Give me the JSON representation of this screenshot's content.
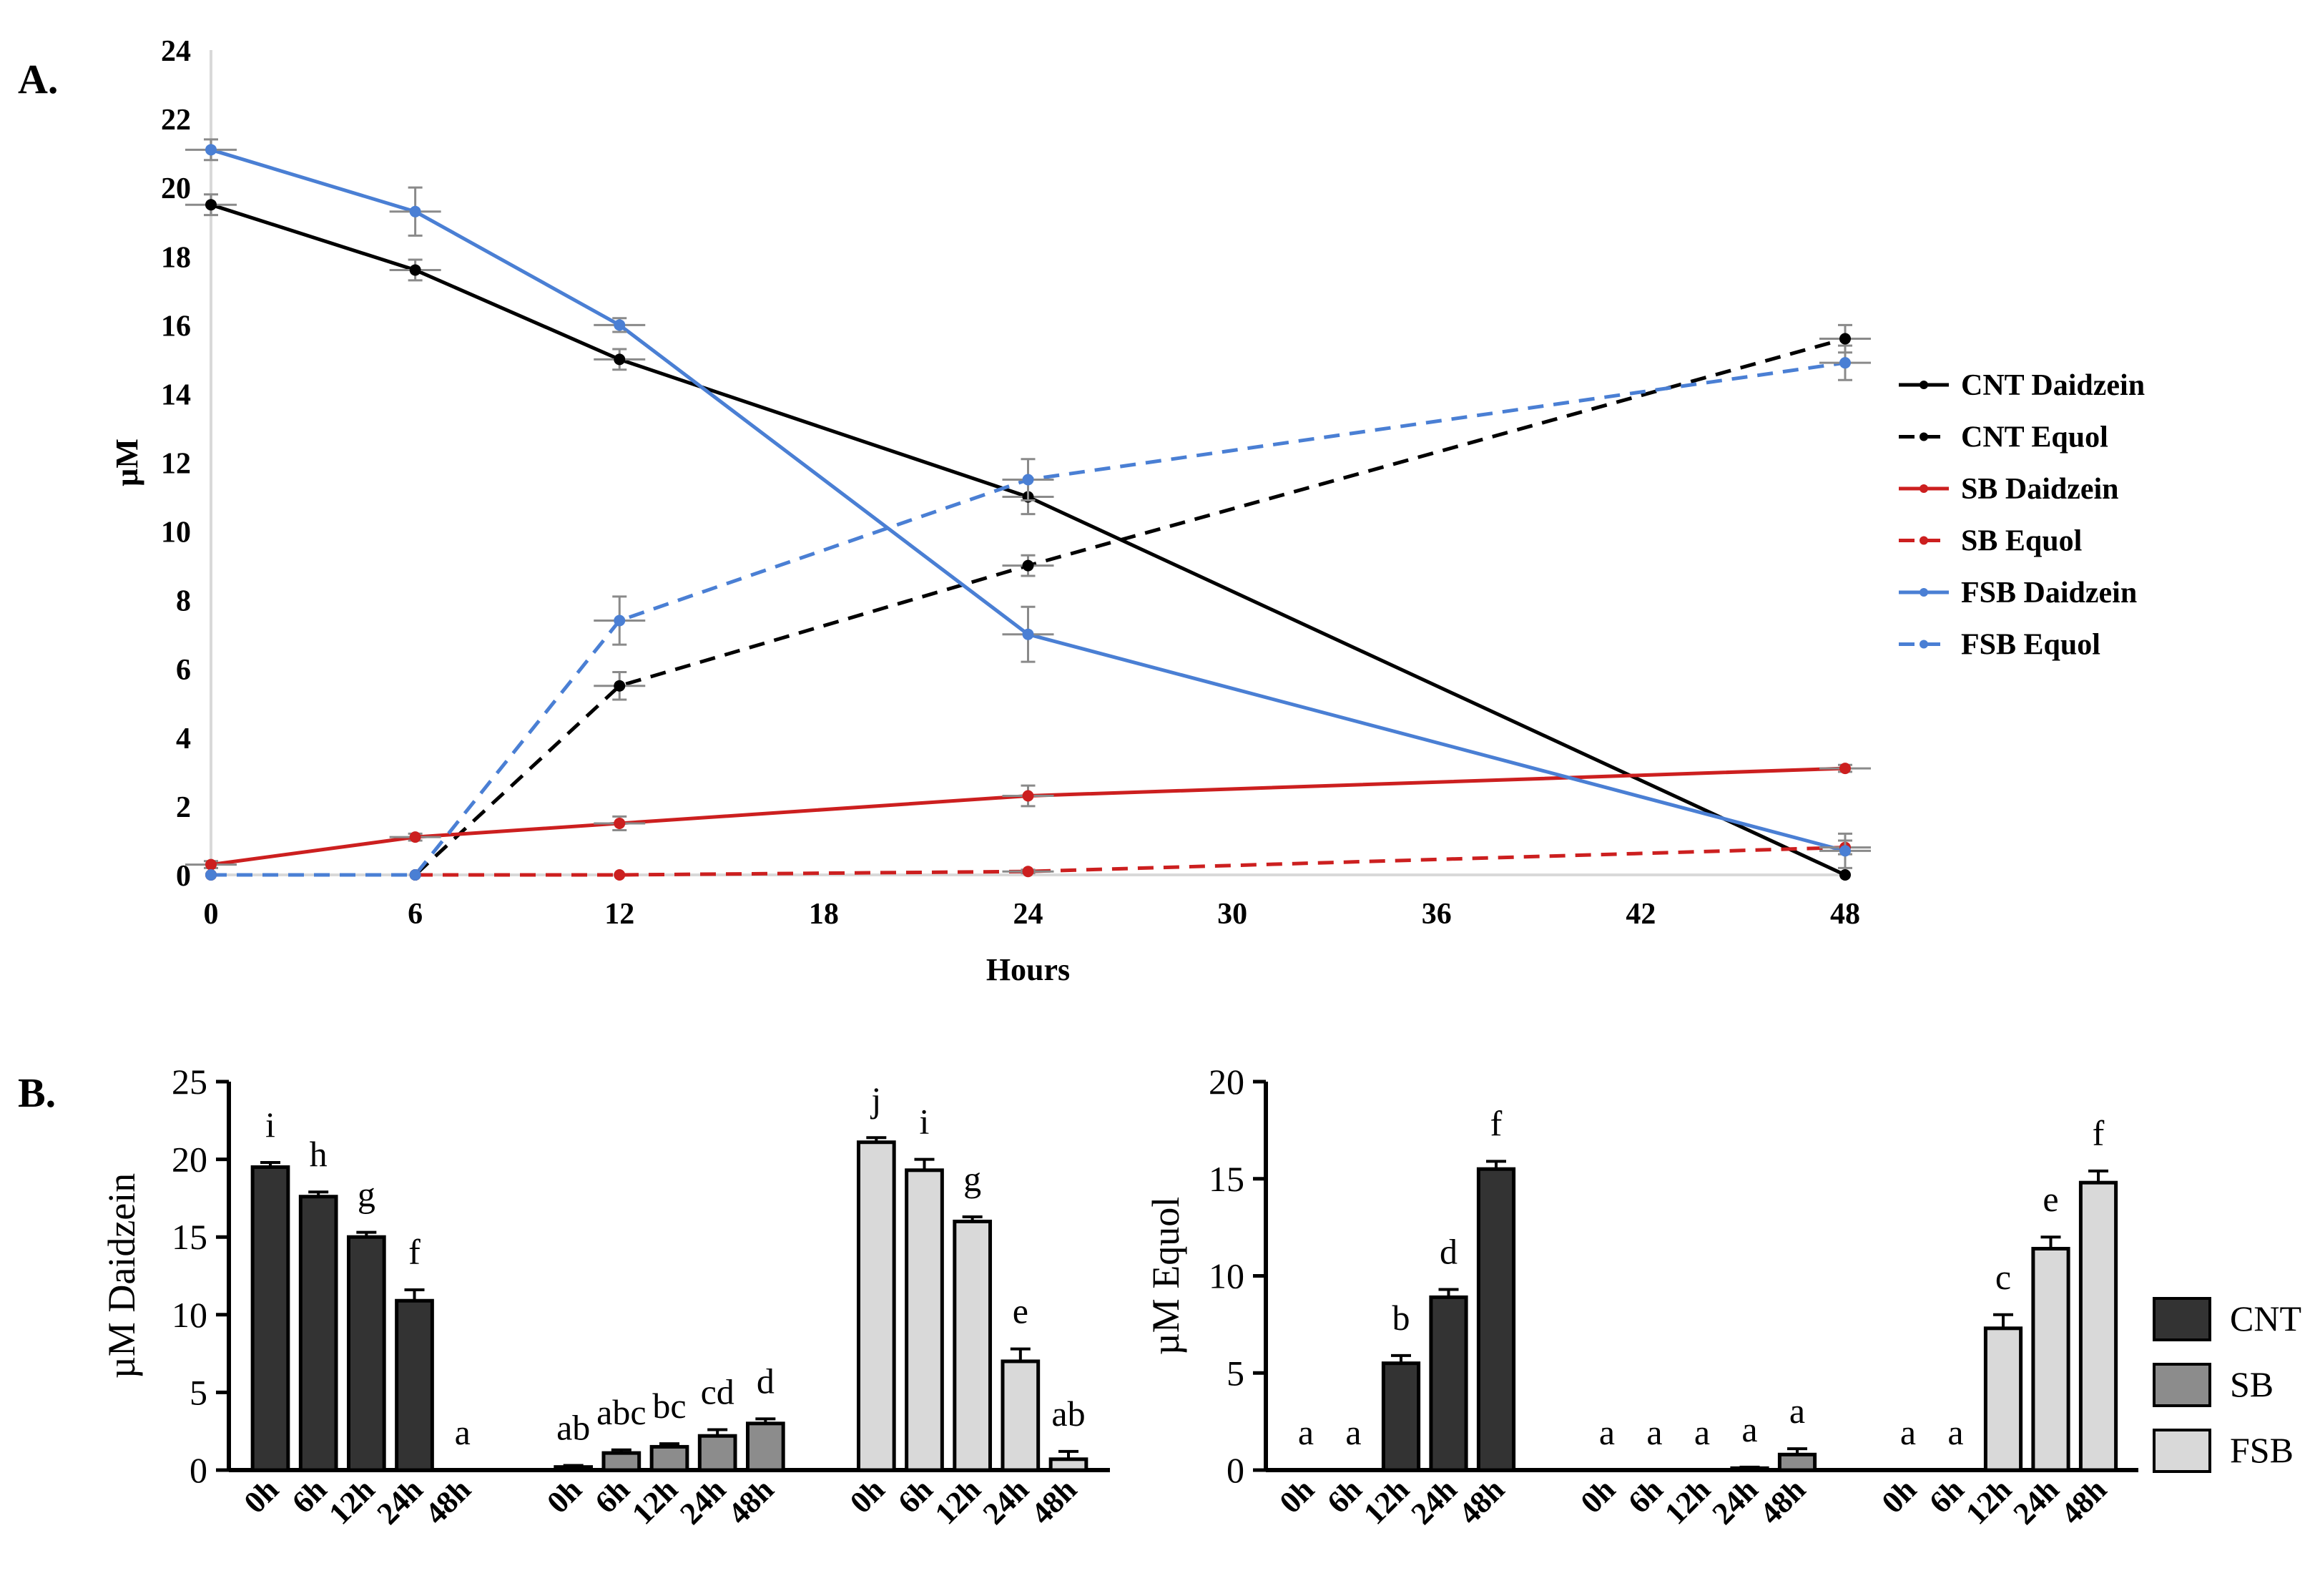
{
  "chart_data": [
    {
      "panel_label": "A.",
      "type": "line",
      "xlabel": "Hours",
      "ylabel": "µM",
      "xlim": [
        0,
        48
      ],
      "ylim": [
        0,
        24
      ],
      "xticks": [
        0,
        6,
        12,
        18,
        24,
        30,
        36,
        42,
        48
      ],
      "yticks": [
        0,
        2,
        4,
        6,
        8,
        10,
        12,
        14,
        16,
        18,
        20,
        22,
        24
      ],
      "legend_position": "right",
      "series": [
        {
          "name": "CNT Daidzein",
          "color": "#000000",
          "dash": false,
          "x": [
            0,
            6,
            12,
            24,
            48
          ],
          "values": [
            19.5,
            17.6,
            15.0,
            11.0,
            0.0
          ],
          "errors": [
            0.3,
            0.3,
            0.3,
            0.5,
            0.0
          ]
        },
        {
          "name": "CNT Equol",
          "color": "#000000",
          "dash": true,
          "x": [
            0,
            6,
            12,
            24,
            48
          ],
          "values": [
            0.0,
            0.0,
            5.5,
            9.0,
            15.6
          ],
          "errors": [
            0.0,
            0.0,
            0.4,
            0.3,
            0.4
          ]
        },
        {
          "name": "SB Daidzein",
          "color": "#cc1f1f",
          "dash": false,
          "x": [
            0,
            6,
            12,
            24,
            48
          ],
          "values": [
            0.3,
            1.1,
            1.5,
            2.3,
            3.1
          ],
          "errors": [
            0.1,
            0.1,
            0.2,
            0.3,
            0.1
          ]
        },
        {
          "name": "SB Equol",
          "color": "#cc1f1f",
          "dash": true,
          "x": [
            0,
            6,
            12,
            24,
            48
          ],
          "values": [
            0.0,
            0.0,
            0.0,
            0.1,
            0.8
          ],
          "errors": [
            0.0,
            0.0,
            0.0,
            0.05,
            0.2
          ]
        },
        {
          "name": "FSB Daidzein",
          "color": "#4a7fd4",
          "dash": false,
          "x": [
            0,
            6,
            12,
            24,
            48
          ],
          "values": [
            21.1,
            19.3,
            16.0,
            7.0,
            0.7
          ],
          "errors": [
            0.3,
            0.7,
            0.2,
            0.8,
            0.5
          ]
        },
        {
          "name": "FSB Equol",
          "color": "#4a7fd4",
          "dash": true,
          "x": [
            0,
            6,
            12,
            24,
            48
          ],
          "values": [
            0.0,
            0.0,
            7.4,
            11.5,
            14.9
          ],
          "errors": [
            0.0,
            0.0,
            0.7,
            0.6,
            0.5
          ]
        }
      ]
    },
    {
      "panel_label": "B.",
      "type": "bar",
      "ylabel": "µM Daidzein",
      "ylim": [
        0,
        25
      ],
      "yticks": [
        0,
        5,
        10,
        15,
        20,
        25
      ],
      "groups": [
        {
          "name": "CNT",
          "color": "#333333",
          "categories": [
            "0h",
            "6h",
            "12h",
            "24h",
            "48h"
          ],
          "values": [
            19.5,
            17.6,
            15.0,
            10.9,
            0.0
          ],
          "errors": [
            0.3,
            0.3,
            0.3,
            0.7,
            0.0
          ],
          "letters": [
            "i",
            "h",
            "g",
            "f",
            "a"
          ]
        },
        {
          "name": "SB",
          "color": "#8c8c8c",
          "categories": [
            "0h",
            "6h",
            "12h",
            "24h",
            "48h"
          ],
          "values": [
            0.2,
            1.1,
            1.5,
            2.2,
            3.0
          ],
          "errors": [
            0.1,
            0.2,
            0.2,
            0.4,
            0.3
          ],
          "letters": [
            "ab",
            "abc",
            "bc",
            "cd",
            "d"
          ]
        },
        {
          "name": "FSB",
          "color": "#d9d9d9",
          "categories": [
            "0h",
            "6h",
            "12h",
            "24h",
            "48h"
          ],
          "values": [
            21.1,
            19.3,
            16.0,
            7.0,
            0.7
          ],
          "errors": [
            0.3,
            0.7,
            0.3,
            0.8,
            0.5
          ],
          "letters": [
            "j",
            "i",
            "g",
            "e",
            "ab"
          ]
        }
      ]
    },
    {
      "type": "bar",
      "ylabel": "µM Equol",
      "ylim": [
        0,
        20
      ],
      "yticks": [
        0,
        5,
        10,
        15,
        20
      ],
      "legend_position": "right",
      "groups": [
        {
          "name": "CNT",
          "color": "#333333",
          "categories": [
            "0h",
            "6h",
            "12h",
            "24h",
            "48h"
          ],
          "values": [
            0.0,
            0.0,
            5.5,
            8.9,
            15.5
          ],
          "errors": [
            0.0,
            0.0,
            0.4,
            0.4,
            0.4
          ],
          "letters": [
            "a",
            "a",
            "b",
            "d",
            "f"
          ]
        },
        {
          "name": "SB",
          "color": "#8c8c8c",
          "categories": [
            "0h",
            "6h",
            "12h",
            "24h",
            "48h"
          ],
          "values": [
            0.0,
            0.0,
            0.0,
            0.1,
            0.8
          ],
          "errors": [
            0.0,
            0.0,
            0.0,
            0.05,
            0.3
          ],
          "letters": [
            "a",
            "a",
            "a",
            "a",
            "a"
          ]
        },
        {
          "name": "FSB",
          "color": "#d9d9d9",
          "categories": [
            "0h",
            "6h",
            "12h",
            "24h",
            "48h"
          ],
          "values": [
            0.0,
            0.0,
            7.3,
            11.4,
            14.8
          ],
          "errors": [
            0.0,
            0.0,
            0.7,
            0.6,
            0.6
          ],
          "letters": [
            "a",
            "a",
            "c",
            "e",
            "f"
          ]
        }
      ]
    }
  ]
}
